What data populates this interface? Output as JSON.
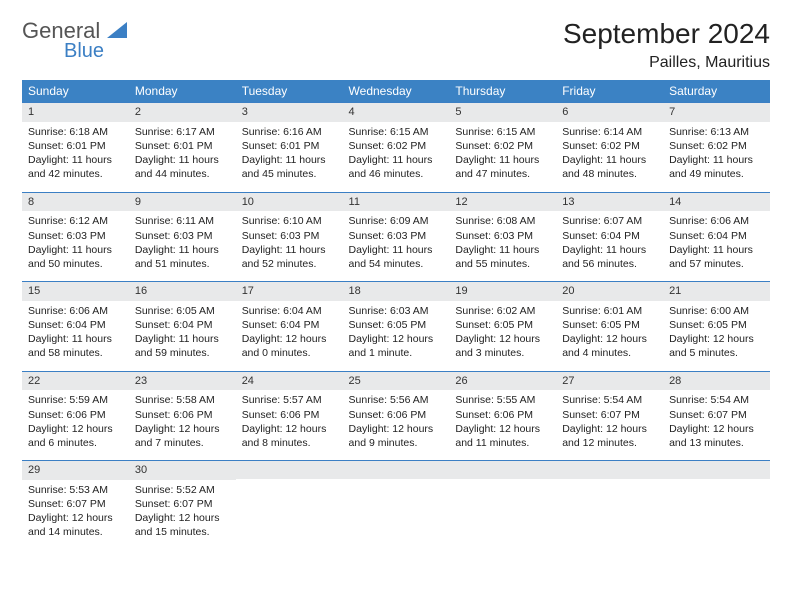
{
  "logo": {
    "general": "General",
    "blue": "Blue",
    "tri_color": "#3b7fc4"
  },
  "title": "September 2024",
  "location": "Pailles, Mauritius",
  "header_bg": "#3b82c4",
  "rule_color": "#3b7fc4",
  "daynum_bg": "#e8e9ea",
  "dows": [
    "Sunday",
    "Monday",
    "Tuesday",
    "Wednesday",
    "Thursday",
    "Friday",
    "Saturday"
  ],
  "weeks": [
    [
      {
        "n": "1",
        "sr": "Sunrise: 6:18 AM",
        "ss": "Sunset: 6:01 PM",
        "dl": "Daylight: 11 hours and 42 minutes."
      },
      {
        "n": "2",
        "sr": "Sunrise: 6:17 AM",
        "ss": "Sunset: 6:01 PM",
        "dl": "Daylight: 11 hours and 44 minutes."
      },
      {
        "n": "3",
        "sr": "Sunrise: 6:16 AM",
        "ss": "Sunset: 6:01 PM",
        "dl": "Daylight: 11 hours and 45 minutes."
      },
      {
        "n": "4",
        "sr": "Sunrise: 6:15 AM",
        "ss": "Sunset: 6:02 PM",
        "dl": "Daylight: 11 hours and 46 minutes."
      },
      {
        "n": "5",
        "sr": "Sunrise: 6:15 AM",
        "ss": "Sunset: 6:02 PM",
        "dl": "Daylight: 11 hours and 47 minutes."
      },
      {
        "n": "6",
        "sr": "Sunrise: 6:14 AM",
        "ss": "Sunset: 6:02 PM",
        "dl": "Daylight: 11 hours and 48 minutes."
      },
      {
        "n": "7",
        "sr": "Sunrise: 6:13 AM",
        "ss": "Sunset: 6:02 PM",
        "dl": "Daylight: 11 hours and 49 minutes."
      }
    ],
    [
      {
        "n": "8",
        "sr": "Sunrise: 6:12 AM",
        "ss": "Sunset: 6:03 PM",
        "dl": "Daylight: 11 hours and 50 minutes."
      },
      {
        "n": "9",
        "sr": "Sunrise: 6:11 AM",
        "ss": "Sunset: 6:03 PM",
        "dl": "Daylight: 11 hours and 51 minutes."
      },
      {
        "n": "10",
        "sr": "Sunrise: 6:10 AM",
        "ss": "Sunset: 6:03 PM",
        "dl": "Daylight: 11 hours and 52 minutes."
      },
      {
        "n": "11",
        "sr": "Sunrise: 6:09 AM",
        "ss": "Sunset: 6:03 PM",
        "dl": "Daylight: 11 hours and 54 minutes."
      },
      {
        "n": "12",
        "sr": "Sunrise: 6:08 AM",
        "ss": "Sunset: 6:03 PM",
        "dl": "Daylight: 11 hours and 55 minutes."
      },
      {
        "n": "13",
        "sr": "Sunrise: 6:07 AM",
        "ss": "Sunset: 6:04 PM",
        "dl": "Daylight: 11 hours and 56 minutes."
      },
      {
        "n": "14",
        "sr": "Sunrise: 6:06 AM",
        "ss": "Sunset: 6:04 PM",
        "dl": "Daylight: 11 hours and 57 minutes."
      }
    ],
    [
      {
        "n": "15",
        "sr": "Sunrise: 6:06 AM",
        "ss": "Sunset: 6:04 PM",
        "dl": "Daylight: 11 hours and 58 minutes."
      },
      {
        "n": "16",
        "sr": "Sunrise: 6:05 AM",
        "ss": "Sunset: 6:04 PM",
        "dl": "Daylight: 11 hours and 59 minutes."
      },
      {
        "n": "17",
        "sr": "Sunrise: 6:04 AM",
        "ss": "Sunset: 6:04 PM",
        "dl": "Daylight: 12 hours and 0 minutes."
      },
      {
        "n": "18",
        "sr": "Sunrise: 6:03 AM",
        "ss": "Sunset: 6:05 PM",
        "dl": "Daylight: 12 hours and 1 minute."
      },
      {
        "n": "19",
        "sr": "Sunrise: 6:02 AM",
        "ss": "Sunset: 6:05 PM",
        "dl": "Daylight: 12 hours and 3 minutes."
      },
      {
        "n": "20",
        "sr": "Sunrise: 6:01 AM",
        "ss": "Sunset: 6:05 PM",
        "dl": "Daylight: 12 hours and 4 minutes."
      },
      {
        "n": "21",
        "sr": "Sunrise: 6:00 AM",
        "ss": "Sunset: 6:05 PM",
        "dl": "Daylight: 12 hours and 5 minutes."
      }
    ],
    [
      {
        "n": "22",
        "sr": "Sunrise: 5:59 AM",
        "ss": "Sunset: 6:06 PM",
        "dl": "Daylight: 12 hours and 6 minutes."
      },
      {
        "n": "23",
        "sr": "Sunrise: 5:58 AM",
        "ss": "Sunset: 6:06 PM",
        "dl": "Daylight: 12 hours and 7 minutes."
      },
      {
        "n": "24",
        "sr": "Sunrise: 5:57 AM",
        "ss": "Sunset: 6:06 PM",
        "dl": "Daylight: 12 hours and 8 minutes."
      },
      {
        "n": "25",
        "sr": "Sunrise: 5:56 AM",
        "ss": "Sunset: 6:06 PM",
        "dl": "Daylight: 12 hours and 9 minutes."
      },
      {
        "n": "26",
        "sr": "Sunrise: 5:55 AM",
        "ss": "Sunset: 6:06 PM",
        "dl": "Daylight: 12 hours and 11 minutes."
      },
      {
        "n": "27",
        "sr": "Sunrise: 5:54 AM",
        "ss": "Sunset: 6:07 PM",
        "dl": "Daylight: 12 hours and 12 minutes."
      },
      {
        "n": "28",
        "sr": "Sunrise: 5:54 AM",
        "ss": "Sunset: 6:07 PM",
        "dl": "Daylight: 12 hours and 13 minutes."
      }
    ],
    [
      {
        "n": "29",
        "sr": "Sunrise: 5:53 AM",
        "ss": "Sunset: 6:07 PM",
        "dl": "Daylight: 12 hours and 14 minutes."
      },
      {
        "n": "30",
        "sr": "Sunrise: 5:52 AM",
        "ss": "Sunset: 6:07 PM",
        "dl": "Daylight: 12 hours and 15 minutes."
      },
      null,
      null,
      null,
      null,
      null
    ]
  ]
}
